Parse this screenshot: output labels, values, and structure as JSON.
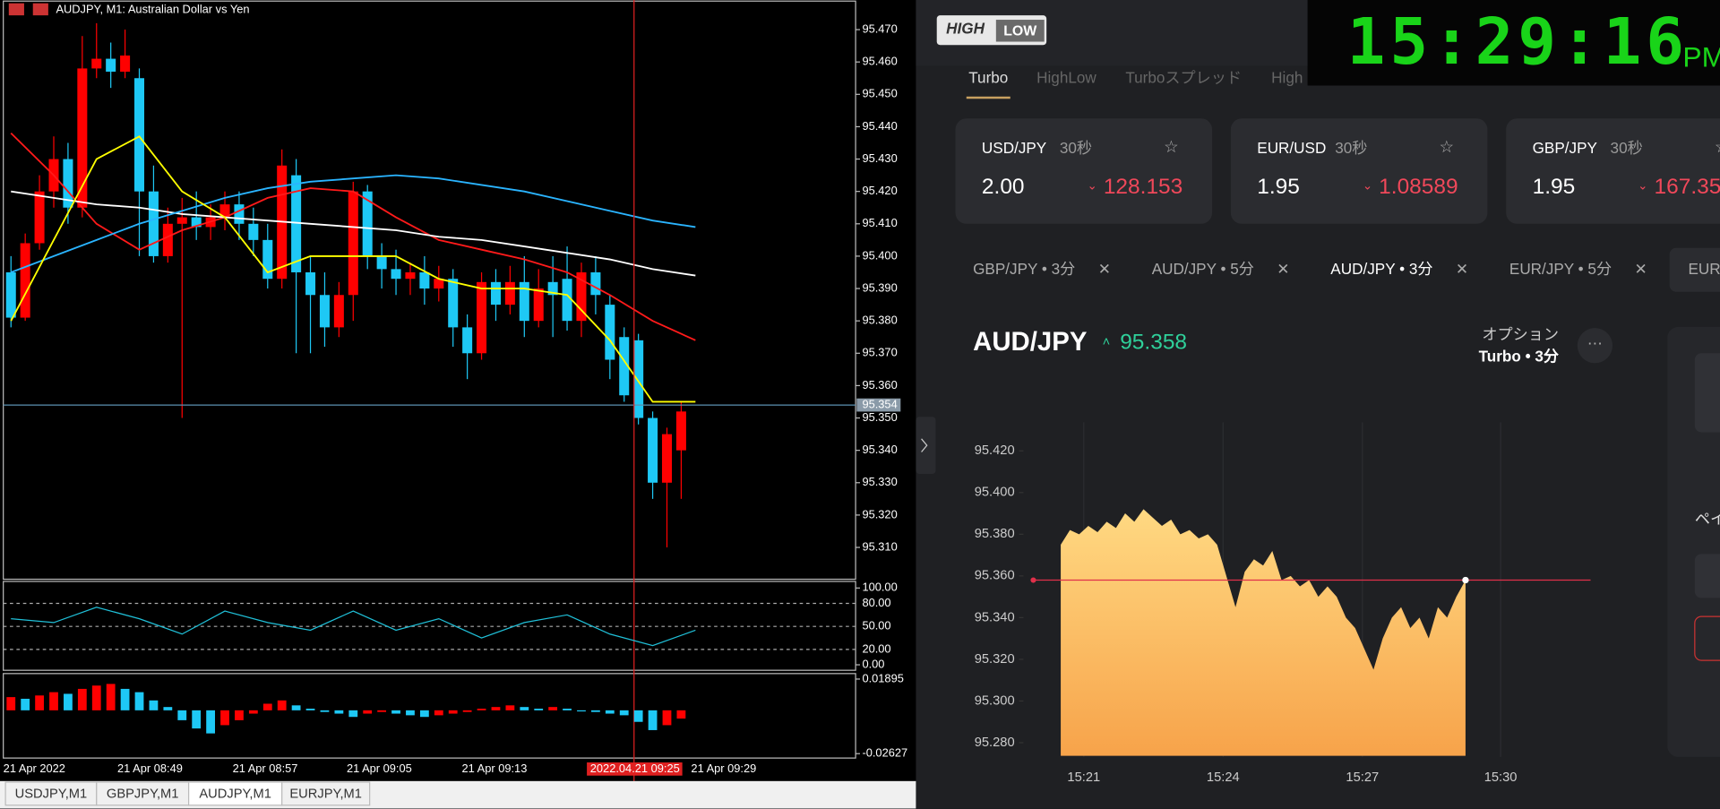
{
  "mt5": {
    "title": "AUDJPY, M1:  Australian Dollar vs Yen",
    "price": {
      "type": "candlestick",
      "ylim": [
        95.3,
        95.48
      ],
      "yticks": [
        {
          "value": 95.47,
          "label": "95.470"
        },
        {
          "value": 95.46,
          "label": "95.460"
        },
        {
          "value": 95.45,
          "label": "95.450"
        },
        {
          "value": 95.44,
          "label": "95.440"
        },
        {
          "value": 95.43,
          "label": "95.430"
        },
        {
          "value": 95.42,
          "label": "95.420"
        },
        {
          "value": 95.41,
          "label": "95.410"
        },
        {
          "value": 95.4,
          "label": "95.400"
        },
        {
          "value": 95.39,
          "label": "95.390"
        },
        {
          "value": 95.38,
          "label": "95.380"
        },
        {
          "value": 95.37,
          "label": "95.370"
        },
        {
          "value": 95.36,
          "label": "95.360"
        },
        {
          "value": 95.35,
          "label": "95.350"
        },
        {
          "value": 95.34,
          "label": "95.340"
        },
        {
          "value": 95.33,
          "label": "95.330"
        },
        {
          "value": 95.32,
          "label": "95.320"
        },
        {
          "value": 95.31,
          "label": "95.310"
        }
      ],
      "current": {
        "value": 95.354,
        "label": "95.354"
      },
      "up_color": "#ff0000",
      "down_color": "#1ec8f5",
      "open": [
        95.395,
        95.381,
        95.404,
        95.42,
        95.43,
        95.415,
        95.458,
        95.461,
        95.457,
        95.455,
        95.42,
        95.4,
        95.41,
        95.412,
        95.409,
        95.412,
        95.416,
        95.41,
        95.405,
        95.393,
        95.425,
        95.395,
        95.388,
        95.378,
        95.388,
        95.42,
        95.4,
        95.396,
        95.393,
        95.395,
        95.39,
        95.393,
        95.378,
        95.37,
        95.392,
        95.385,
        95.392,
        95.38,
        95.392,
        95.393,
        95.38,
        95.395,
        95.385,
        95.375,
        95.374,
        95.35,
        95.33,
        95.34
      ],
      "high": [
        95.4,
        95.407,
        95.425,
        95.437,
        95.435,
        95.468,
        95.472,
        95.466,
        95.47,
        95.458,
        95.428,
        95.415,
        95.418,
        95.42,
        95.416,
        95.42,
        95.42,
        95.415,
        95.41,
        95.433,
        95.43,
        95.4,
        95.395,
        95.392,
        95.423,
        95.422,
        95.404,
        95.402,
        95.398,
        95.4,
        95.397,
        95.396,
        95.382,
        95.395,
        95.396,
        95.397,
        95.4,
        95.396,
        95.4,
        95.403,
        95.398,
        95.4,
        95.388,
        95.378,
        95.376,
        95.352,
        95.347,
        95.355
      ],
      "low": [
        95.378,
        95.38,
        95.402,
        95.415,
        95.41,
        95.412,
        95.455,
        95.452,
        95.455,
        95.4,
        95.398,
        95.398,
        95.35,
        95.405,
        95.405,
        95.408,
        95.405,
        95.4,
        95.39,
        95.39,
        95.37,
        95.37,
        95.372,
        95.375,
        95.38,
        95.396,
        95.39,
        95.388,
        95.388,
        95.385,
        95.386,
        95.372,
        95.362,
        95.368,
        95.38,
        95.382,
        95.375,
        95.378,
        95.375,
        95.377,
        95.375,
        95.382,
        95.362,
        95.355,
        95.348,
        95.325,
        95.31,
        95.325
      ],
      "close": [
        95.381,
        95.404,
        95.42,
        95.43,
        95.415,
        95.458,
        95.461,
        95.457,
        95.462,
        95.42,
        95.4,
        95.41,
        95.412,
        95.409,
        95.412,
        95.416,
        95.41,
        95.405,
        95.393,
        95.428,
        95.395,
        95.388,
        95.378,
        95.388,
        95.42,
        95.4,
        95.396,
        95.393,
        95.395,
        95.39,
        95.393,
        95.378,
        95.37,
        95.392,
        95.385,
        95.392,
        95.38,
        95.39,
        95.388,
        95.38,
        95.395,
        95.388,
        95.368,
        95.357,
        95.35,
        95.33,
        95.345,
        95.352
      ],
      "lines": [
        {
          "color": "#ff1a1a",
          "values": [
            95.438,
            95.425,
            95.41,
            95.402,
            95.408,
            95.412,
            95.418,
            95.421,
            95.42,
            95.412,
            95.405,
            95.402,
            95.399,
            95.395,
            95.388,
            95.38,
            95.374
          ]
        },
        {
          "color": "#ffffff",
          "values": [
            95.42,
            95.418,
            95.416,
            95.415,
            95.413,
            95.412,
            95.411,
            95.41,
            95.409,
            95.408,
            95.406,
            95.405,
            95.403,
            95.401,
            95.399,
            95.396,
            95.394
          ]
        },
        {
          "color": "#2ab4ff",
          "values": [
            95.395,
            95.4,
            95.405,
            95.41,
            95.414,
            95.418,
            95.421,
            95.423,
            95.424,
            95.425,
            95.424,
            95.422,
            95.42,
            95.417,
            95.414,
            95.411,
            95.409
          ]
        },
        {
          "color": "#ffff00",
          "values": [
            95.38,
            95.405,
            95.43,
            95.437,
            95.42,
            95.412,
            95.395,
            95.4,
            95.4,
            95.4,
            95.393,
            95.39,
            95.39,
            95.388,
            95.374,
            95.355,
            95.355
          ]
        }
      ]
    },
    "stochastic": {
      "type": "line",
      "ylim": [
        0,
        100
      ],
      "color": "#20c0d8",
      "yticks": [
        {
          "value": 100,
          "label": "100.00"
        },
        {
          "value": 80,
          "label": "80.00"
        },
        {
          "value": 50,
          "label": "50.00"
        },
        {
          "value": 20,
          "label": "20.00"
        },
        {
          "value": 0,
          "label": "0.00"
        }
      ],
      "values": [
        60,
        55,
        75,
        60,
        40,
        70,
        55,
        45,
        70,
        45,
        60,
        35,
        55,
        65,
        40,
        25,
        45
      ]
    },
    "histogram": {
      "type": "bar",
      "ylim": [
        -0.02627,
        0.01895
      ],
      "yticks": [
        0.01895,
        -0.02627
      ],
      "up_color": "#ff0000",
      "down_color": "#1ec8f5",
      "values": [
        0.008,
        0.007,
        0.009,
        0.011,
        0.01,
        0.013,
        0.015,
        0.016,
        0.013,
        0.011,
        0.006,
        0.002,
        -0.006,
        -0.011,
        -0.014,
        -0.009,
        -0.006,
        -0.002,
        0.004,
        0.006,
        0.003,
        0.001,
        -0.001,
        -0.002,
        -0.004,
        -0.002,
        -0.001,
        -0.002,
        -0.003,
        -0.004,
        -0.003,
        -0.002,
        -0.001,
        0.001,
        0.002,
        0.003,
        0.002,
        0.001,
        0.002,
        0.001,
        0.0,
        -0.001,
        -0.002,
        -0.003,
        -0.007,
        -0.012,
        -0.009,
        -0.005
      ]
    },
    "xticks": [
      "21 Apr 2022",
      "21 Apr 08:49",
      "21 Apr 08:57",
      "21 Apr 09:05",
      "21 Apr 09:13",
      "21 Apr 09:29"
    ],
    "crosshair": "2022.04.21 09:25",
    "tabs": [
      "USDJPY,M1",
      "GBPJPY,M1",
      "AUDJPY,M1",
      "EURJPY,M1"
    ]
  },
  "highlow": {
    "logo": [
      "HIGH",
      "LOW"
    ],
    "clock": "15:29:16",
    "ampm": "PM",
    "product_tabs": [
      "Turbo",
      "HighLow",
      "Turboスプレッド",
      "High"
    ],
    "cards": [
      {
        "pair": "USD/JPY",
        "duration": "30秒",
        "payout": "2.00",
        "rate": 128.153
      },
      {
        "pair": "EUR/USD",
        "duration": "30秒",
        "payout": "1.95",
        "rate": 1.08589
      },
      {
        "pair": "GBP/JPY",
        "duration": "30秒",
        "payout": "1.95",
        "rate": 167.35
      }
    ],
    "asset_tabs": [
      "GBP/JPY • 3分",
      "AUD/JPY • 5分",
      "AUD/JPY • 3分",
      "EUR/JPY • 5分",
      "EUR/"
    ],
    "asset": "AUD/JPY",
    "price": 95.358,
    "option_label": "オプション",
    "option": "Turbo • 3分",
    "side_label": "ペイ",
    "chart": {
      "type": "area",
      "ylim": [
        95.27,
        95.43
      ],
      "color": "#ffc96e",
      "yticks": [
        {
          "value": 95.42,
          "label": "95.420"
        },
        {
          "value": 95.4,
          "label": "95.400"
        },
        {
          "value": 95.38,
          "label": "95.380"
        },
        {
          "value": 95.36,
          "label": "95.360"
        },
        {
          "value": 95.34,
          "label": "95.340"
        },
        {
          "value": 95.32,
          "label": "95.320"
        },
        {
          "value": 95.3,
          "label": "95.300"
        },
        {
          "value": 95.28,
          "label": "95.280"
        }
      ],
      "xticks": [
        "15:21",
        "15:24",
        "15:27",
        "15:30"
      ],
      "values": [
        95.375,
        95.382,
        95.38,
        95.384,
        95.381,
        95.386,
        95.383,
        95.39,
        95.386,
        95.392,
        95.388,
        95.384,
        95.387,
        95.38,
        95.382,
        95.378,
        95.38,
        95.375,
        95.36,
        95.345,
        95.362,
        95.368,
        95.365,
        95.372,
        95.358,
        95.36,
        95.355,
        95.358,
        95.35,
        95.355,
        95.35,
        95.34,
        95.335,
        95.325,
        95.315,
        95.33,
        95.34,
        95.345,
        95.335,
        95.34,
        95.33,
        95.345,
        95.34,
        95.35,
        95.358
      ]
    }
  }
}
